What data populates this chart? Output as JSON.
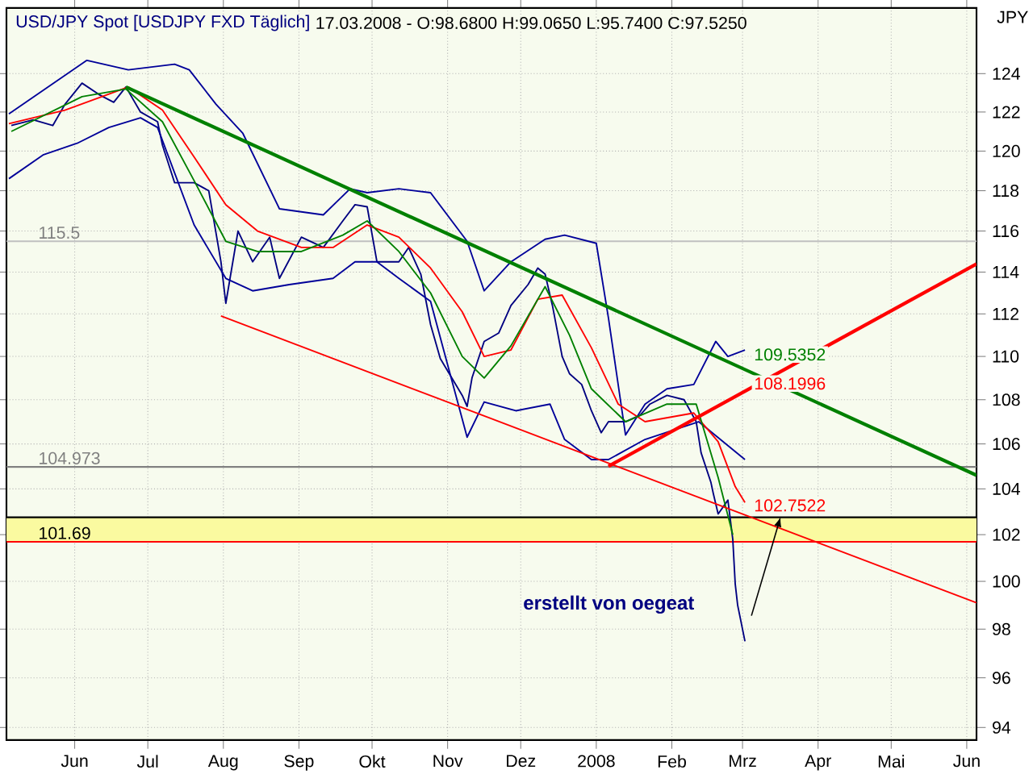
{
  "chart_data": {
    "type": "line",
    "title": "USD/JPY Spot [USDJPY FXD  Täglich]",
    "subtitle": "17.03.2008 - O:98.6800 H:99.0650 L:95.7400 C:97.5250",
    "ylabel": "JPY",
    "log": true,
    "grid": true,
    "xlim": [
      "2007-05-19",
      "2008-06-20"
    ],
    "ylim": [
      93.5,
      127.5
    ],
    "yticks": [
      94,
      96,
      98,
      100,
      102,
      104,
      106,
      108,
      110,
      112,
      114,
      116,
      118,
      120,
      122,
      124
    ],
    "xticks": [
      {
        "value": "2007-06-16",
        "label": "Jun"
      },
      {
        "value": "2007-07-16",
        "label": "Jul"
      },
      {
        "value": "2007-08-16",
        "label": "Aug"
      },
      {
        "value": "2007-09-16",
        "label": "Sep"
      },
      {
        "value": "2007-10-16",
        "label": "Okt"
      },
      {
        "value": "2007-11-16",
        "label": "Nov"
      },
      {
        "value": "2007-12-16",
        "label": "Dez"
      },
      {
        "value": "2008-01-16",
        "label": "2008"
      },
      {
        "value": "2008-02-16",
        "label": "Feb"
      },
      {
        "value": "2008-03-16",
        "label": "Mrz"
      },
      {
        "value": "2008-04-16",
        "label": "Apr"
      },
      {
        "value": "2008-05-16",
        "label": "Mai"
      },
      {
        "value": "2008-06-16",
        "label": "Jun"
      }
    ],
    "bands": [
      {
        "axis": "y",
        "from": 101.69,
        "to": 102.7522,
        "color": "#fafaa0"
      }
    ],
    "ref_lines": [
      {
        "axis": "y",
        "value": 115.5,
        "label": "115.5",
        "color": "#c0c0c0"
      },
      {
        "axis": "y",
        "value": 104.973,
        "label": "104.973",
        "color": "#808080"
      },
      {
        "axis": "y",
        "value": 101.69,
        "label": "101.69",
        "color": "#ff0000"
      },
      {
        "axis": "y",
        "value": 102.7522,
        "color": "#000000"
      }
    ],
    "series": [
      {
        "color": "#000080",
        "x": [
          "2007-05-21",
          "2007-05-30",
          "2007-06-07",
          "2007-06-12",
          "2007-06-19",
          "2007-06-26",
          "2007-07-02",
          "2007-07-07",
          "2007-07-13",
          "2007-07-20",
          "2007-07-22",
          "2007-07-27",
          "2007-08-04",
          "2007-08-10",
          "2007-08-15",
          "2007-08-17",
          "2007-08-22",
          "2007-08-28",
          "2007-09-04",
          "2007-09-08",
          "2007-09-17",
          "2007-09-26",
          "2007-10-04",
          "2007-10-09",
          "2007-10-14",
          "2007-10-18",
          "2007-10-27",
          "2007-10-31",
          "2007-11-05",
          "2007-11-09",
          "2007-11-13",
          "2007-11-22",
          "2007-11-24",
          "2007-11-26",
          "2007-12-01",
          "2007-12-07",
          "2007-12-12",
          "2007-12-19",
          "2007-12-23",
          "2007-12-26",
          "2007-12-29",
          "2008-01-02",
          "2008-01-05",
          "2008-01-10",
          "2008-01-14",
          "2008-01-18",
          "2008-01-21",
          "2008-01-28",
          "2008-02-03",
          "2008-02-07",
          "2008-02-14",
          "2008-02-21",
          "2008-02-26",
          "2008-02-28",
          "2008-03-03",
          "2008-03-04",
          "2008-03-06",
          "2008-03-10",
          "2008-03-12",
          "2008-03-13",
          "2008-03-14",
          "2008-03-17"
        ],
        "values": [
          121.3,
          121.6,
          121.3,
          122.4,
          123.5,
          122.9,
          122.5,
          123.3,
          122.0,
          121.5,
          120.3,
          118.4,
          118.4,
          118.0,
          114.5,
          112.5,
          116.0,
          114.5,
          115.7,
          113.7,
          115.7,
          115.2,
          116.5,
          117.3,
          117.2,
          114.5,
          114.5,
          115.2,
          113.9,
          111.5,
          109.9,
          108.2,
          107.7,
          109.0,
          110.7,
          111.1,
          112.4,
          113.4,
          114.2,
          113.9,
          112.4,
          110.0,
          109.2,
          108.7,
          107.5,
          106.5,
          107.0,
          107.0,
          107.3,
          107.8,
          108.2,
          108.0,
          107.0,
          105.6,
          104.3,
          103.8,
          102.9,
          103.5,
          101.8,
          99.9,
          99.0,
          97.5
        ]
      },
      {
        "color": "#000099",
        "x": [
          "2007-05-20",
          "2007-06-21",
          "2007-07-08",
          "2007-07-27",
          "2007-08-02",
          "2007-08-13",
          "2007-08-24",
          "2007-09-08",
          "2007-09-26",
          "2007-10-07",
          "2007-10-14",
          "2007-10-27",
          "2007-11-09",
          "2007-11-24",
          "2007-12-01",
          "2007-12-12",
          "2007-12-26",
          "2008-01-03",
          "2008-01-16",
          "2008-01-21",
          "2008-01-28",
          "2008-02-05",
          "2008-02-14",
          "2008-02-25",
          "2008-03-05",
          "2008-03-10",
          "2008-03-17"
        ],
        "values": [
          121.9,
          124.7,
          124.2,
          124.5,
          124.2,
          122.4,
          120.9,
          117.1,
          116.8,
          118.1,
          117.9,
          118.1,
          117.9,
          115.5,
          113.1,
          114.5,
          115.6,
          115.8,
          115.4,
          111.8,
          106.4,
          107.8,
          108.5,
          108.7,
          110.7,
          110.0,
          110.3
        ]
      },
      {
        "color": "#000099",
        "x": [
          "2007-05-20",
          "2007-06-03",
          "2007-06-17",
          "2007-06-30",
          "2007-07-13",
          "2007-07-20",
          "2007-08-04",
          "2007-08-17",
          "2007-08-28",
          "2007-09-12",
          "2007-09-30",
          "2007-10-09",
          "2007-10-18",
          "2007-10-27",
          "2007-11-09",
          "2007-11-24",
          "2007-12-01",
          "2007-12-14",
          "2007-12-28",
          "2008-01-03",
          "2008-01-14",
          "2008-01-21",
          "2008-02-05",
          "2008-02-27",
          "2008-03-17"
        ],
        "values": [
          118.6,
          119.8,
          120.4,
          121.2,
          121.7,
          121.2,
          116.3,
          113.7,
          113.1,
          113.4,
          113.7,
          114.5,
          114.5,
          113.7,
          112.6,
          106.3,
          107.9,
          107.5,
          107.8,
          106.2,
          105.3,
          105.3,
          106.2,
          107.0,
          105.3
        ]
      },
      {
        "color": "#ff0000",
        "x": [
          "2007-05-20",
          "2007-06-12",
          "2007-07-08",
          "2007-07-22",
          "2007-08-04",
          "2007-08-17",
          "2007-08-30",
          "2007-09-17",
          "2007-09-30",
          "2007-10-14",
          "2007-10-27",
          "2007-11-09",
          "2007-11-22",
          "2007-12-01",
          "2007-12-12",
          "2007-12-23",
          "2008-01-02",
          "2008-01-14",
          "2008-01-25",
          "2008-02-05",
          "2008-02-25",
          "2008-03-06",
          "2008-03-13",
          "2008-03-17"
        ],
        "values": [
          121.4,
          122.1,
          123.3,
          122.1,
          119.7,
          117.3,
          116.0,
          115.2,
          115.2,
          116.3,
          115.7,
          114.2,
          112.1,
          110.0,
          110.3,
          112.7,
          112.9,
          110.4,
          107.8,
          107.0,
          107.4,
          106.1,
          104.1,
          103.4
        ]
      },
      {
        "color": "#008000",
        "x": [
          "2007-05-21",
          "2007-06-19",
          "2007-07-07",
          "2007-07-22",
          "2007-08-04",
          "2007-08-17",
          "2007-08-30",
          "2007-09-17",
          "2007-10-04",
          "2007-10-14",
          "2007-10-27",
          "2007-11-09",
          "2007-11-22",
          "2007-12-01",
          "2007-12-12",
          "2007-12-26",
          "2008-01-05",
          "2008-01-14",
          "2008-01-28",
          "2008-02-14",
          "2008-02-26",
          "2008-03-06",
          "2008-03-12"
        ],
        "values": [
          121.0,
          122.8,
          123.2,
          121.5,
          118.5,
          115.5,
          115.0,
          115.0,
          115.8,
          116.5,
          115.0,
          113.0,
          110.0,
          109.0,
          110.5,
          113.3,
          111.0,
          108.5,
          107.0,
          107.8,
          107.8,
          104.5,
          102.0
        ]
      },
      {
        "color": "#008000",
        "x": [
          "2007-07-07",
          "2008-06-20"
        ],
        "values": [
          123.3,
          104.6
        ]
      },
      {
        "color": "#ff0000",
        "x": [
          "2008-01-21",
          "2008-06-20"
        ],
        "values": [
          105.0,
          114.4
        ]
      },
      {
        "color": "#ff0000",
        "x": [
          "2007-08-15",
          "2008-06-20"
        ],
        "values": [
          111.9,
          99.1
        ]
      }
    ],
    "annotations": [
      {
        "text": "109.5352",
        "x": "2008-03-17",
        "y": 109.5352
      },
      {
        "text": "108.1996",
        "x": "2008-03-17",
        "y": 108.1996
      },
      {
        "text": "102.7522",
        "x": "2008-03-17",
        "y": 102.7522
      },
      "erstellt von oegeat"
    ]
  }
}
